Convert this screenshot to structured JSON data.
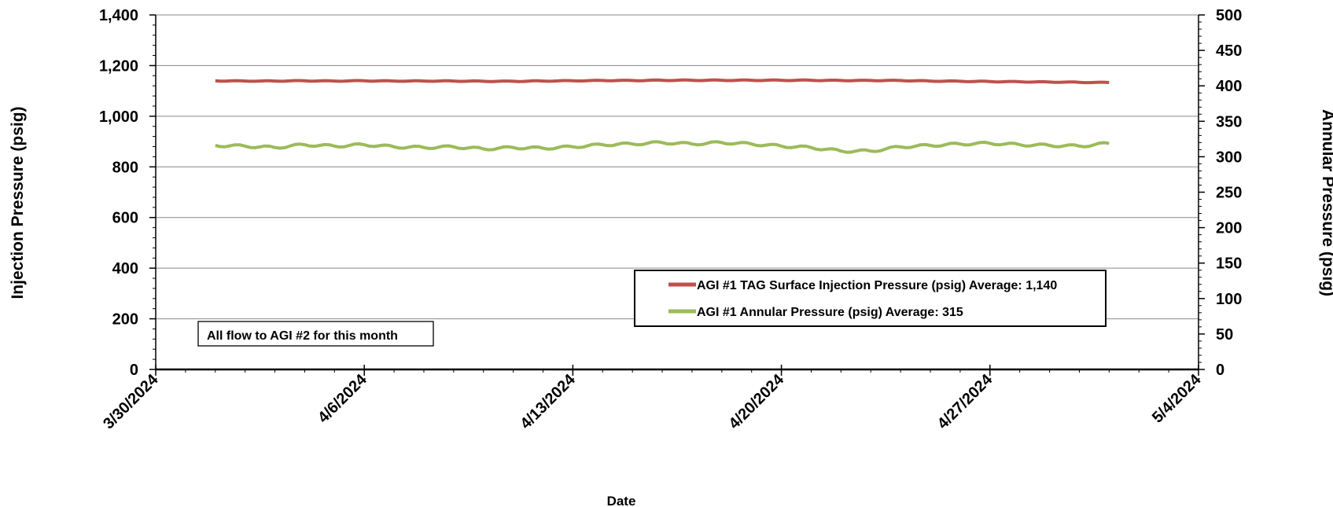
{
  "chart_data": {
    "type": "line",
    "xlabel": "Date",
    "ylabel": "Injection Pressure (psig)",
    "y2label": "Annular Pressure (psig)",
    "xlim": [
      "3/30/2024",
      "5/4/2024"
    ],
    "ylim": [
      0,
      1400
    ],
    "y2lim": [
      0,
      500
    ],
    "x_ticks": [
      "3/30/2024",
      "4/6/2024",
      "4/13/2024",
      "4/20/2024",
      "4/27/2024",
      "5/4/2024"
    ],
    "y_ticks": [
      "0",
      "200",
      "400",
      "600",
      "800",
      "1,000",
      "1,200",
      "1,400"
    ],
    "y2_ticks": [
      "0",
      "50",
      "100",
      "150",
      "200",
      "250",
      "300",
      "350",
      "400",
      "450",
      "500"
    ],
    "grid": "horizontal",
    "legend_position": "bottom-right",
    "annotation": "All flow to AGI #2 for this month",
    "series": [
      {
        "name": "AGI #1 TAG Surface Injection Pressure (psig) Average: 1,140",
        "axis": "left",
        "color": "#c0504d",
        "x": [
          "4/1/2024",
          "4/2/2024",
          "4/3/2024",
          "4/4/2024",
          "4/5/2024",
          "4/6/2024",
          "4/7/2024",
          "4/8/2024",
          "4/9/2024",
          "4/10/2024",
          "4/11/2024",
          "4/12/2024",
          "4/13/2024",
          "4/14/2024",
          "4/15/2024",
          "4/16/2024",
          "4/17/2024",
          "4/18/2024",
          "4/19/2024",
          "4/20/2024",
          "4/21/2024",
          "4/22/2024",
          "4/23/2024",
          "4/24/2024",
          "4/25/2024",
          "4/26/2024",
          "4/27/2024",
          "4/28/2024",
          "4/29/2024",
          "4/30/2024",
          "5/1/2024"
        ],
        "values": [
          1140,
          1139,
          1139,
          1140,
          1139,
          1140,
          1139,
          1139,
          1139,
          1138,
          1138,
          1139,
          1140,
          1141,
          1141,
          1142,
          1142,
          1142,
          1142,
          1142,
          1142,
          1141,
          1141,
          1141,
          1139,
          1138,
          1137,
          1136,
          1135,
          1134,
          1133
        ]
      },
      {
        "name": "AGI #1 Annular Pressure (psig) Average: 315",
        "axis": "right",
        "color": "#9bbb59",
        "x": [
          "4/1/2024",
          "4/2/2024",
          "4/3/2024",
          "4/4/2024",
          "4/5/2024",
          "4/6/2024",
          "4/7/2024",
          "4/8/2024",
          "4/9/2024",
          "4/10/2024",
          "4/11/2024",
          "4/12/2024",
          "4/13/2024",
          "4/14/2024",
          "4/15/2024",
          "4/16/2024",
          "4/17/2024",
          "4/18/2024",
          "4/19/2024",
          "4/20/2024",
          "4/21/2024",
          "4/22/2024",
          "4/23/2024",
          "4/24/2024",
          "4/25/2024",
          "4/26/2024",
          "4/27/2024",
          "4/28/2024",
          "4/29/2024",
          "4/30/2024",
          "5/1/2024"
        ],
        "values": [
          316,
          315,
          313,
          317,
          315,
          317,
          314,
          313,
          314,
          311,
          313,
          312,
          314,
          317,
          318,
          320,
          318,
          320,
          318,
          315,
          313,
          308,
          308,
          314,
          316,
          318,
          319,
          317,
          316,
          315,
          319
        ]
      }
    ]
  }
}
